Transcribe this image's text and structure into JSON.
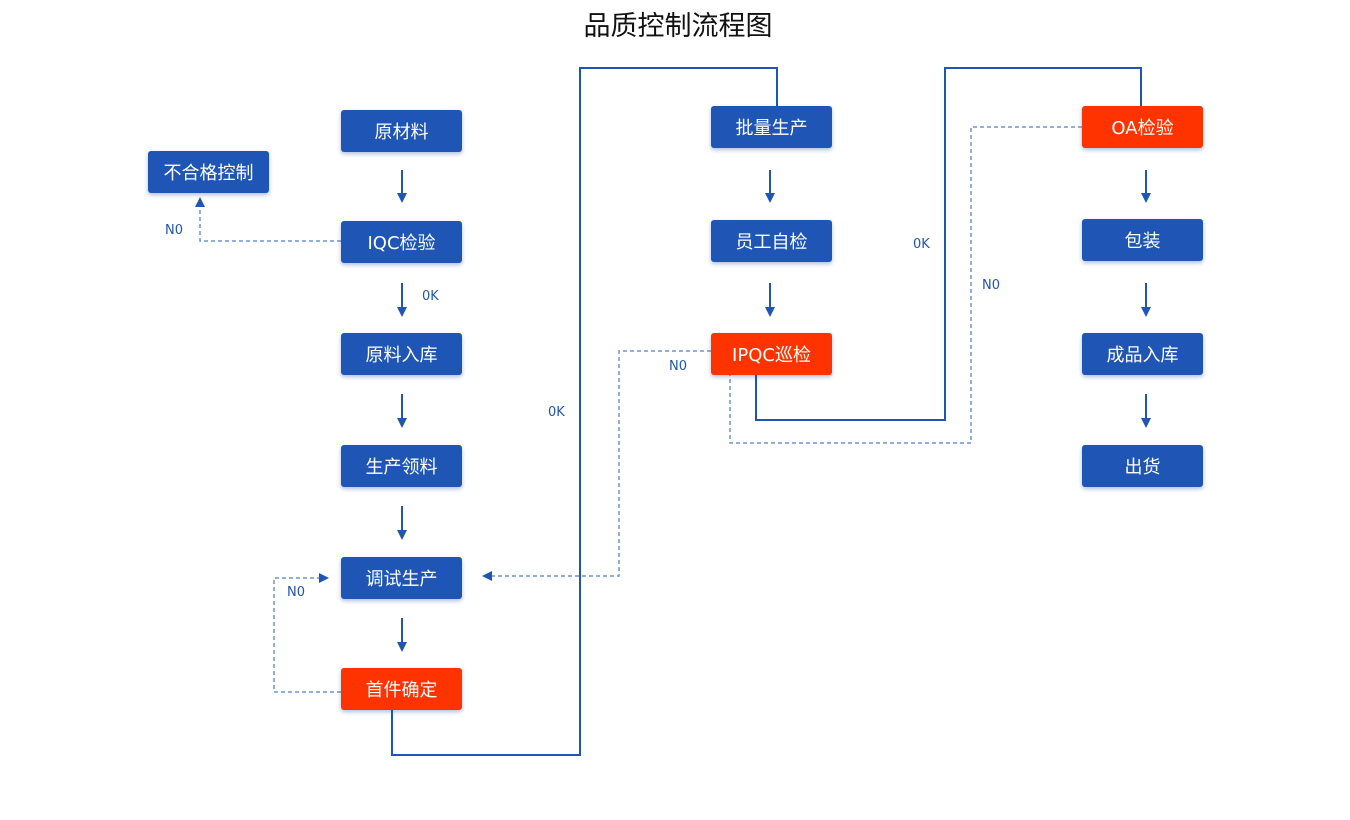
{
  "title": "品质控制流程图",
  "colors": {
    "blue": "#1f55b5",
    "red": "#ff3300",
    "dashed": "#6f94d6"
  },
  "nodes": [
    {
      "id": "raw-material",
      "label": "原材料",
      "type": "blue"
    },
    {
      "id": "iqc",
      "label": "IQC检验",
      "type": "blue"
    },
    {
      "id": "raw-stock-in",
      "label": "原料入库",
      "type": "blue"
    },
    {
      "id": "material-pick",
      "label": "生产领料",
      "type": "blue"
    },
    {
      "id": "trial-production",
      "label": "调试生产",
      "type": "blue"
    },
    {
      "id": "first-article",
      "label": "首件确定",
      "type": "red"
    },
    {
      "id": "nonconforming",
      "label": "不合格控制",
      "type": "blue"
    },
    {
      "id": "mass-production",
      "label": "批量生产",
      "type": "blue"
    },
    {
      "id": "self-check",
      "label": "员工自检",
      "type": "blue"
    },
    {
      "id": "ipqc",
      "label": "IPQC巡检",
      "type": "red"
    },
    {
      "id": "oa",
      "label": "OA检验",
      "type": "red"
    },
    {
      "id": "packaging",
      "label": "包装",
      "type": "blue"
    },
    {
      "id": "finished-stock-in",
      "label": "成品入库",
      "type": "blue"
    },
    {
      "id": "shipment",
      "label": "出货",
      "type": "blue"
    }
  ],
  "edge_labels": [
    "N0",
    "0K",
    "0K",
    "N0",
    "0K",
    "N0",
    "N0"
  ]
}
